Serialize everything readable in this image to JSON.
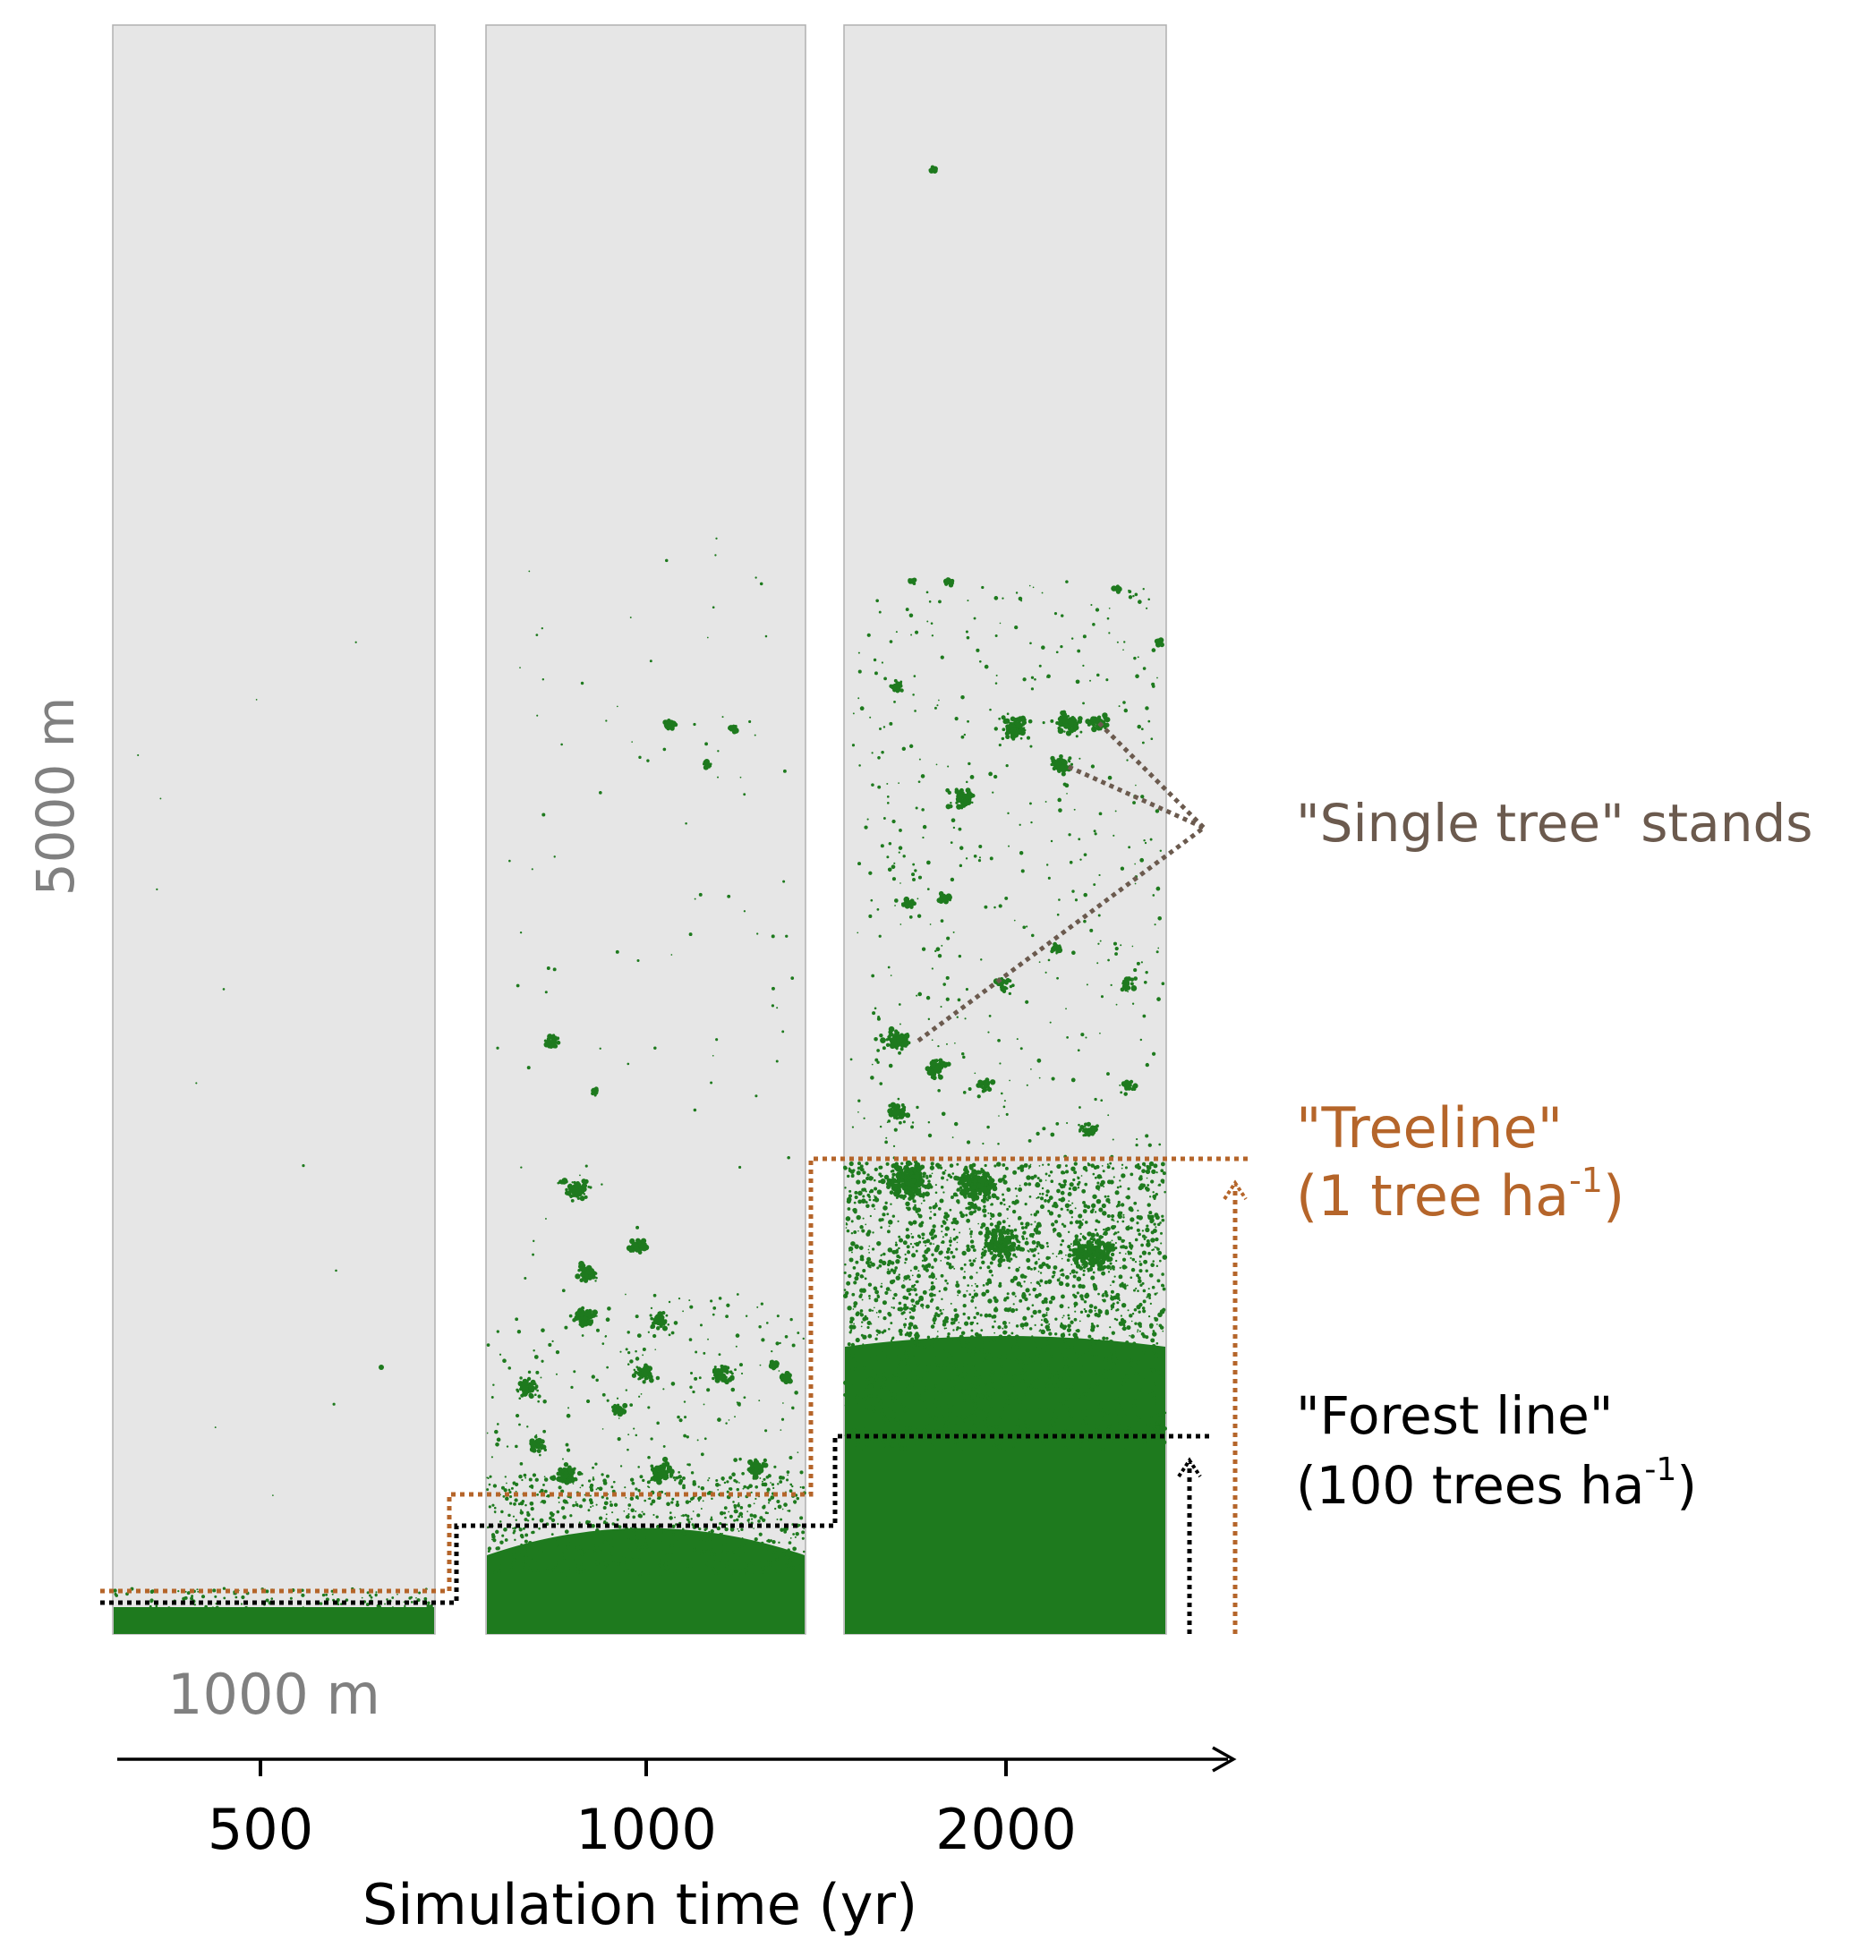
{
  "panels": [
    {
      "time": "500"
    },
    {
      "time": "1000"
    },
    {
      "time": "2000"
    }
  ],
  "scale": {
    "height_label": "5000 m",
    "width_label": "1000 m"
  },
  "axis": {
    "title": "Simulation time (yr)",
    "ticks": [
      "500",
      "1000",
      "2000"
    ]
  },
  "annotations": {
    "single_tree": "\"Single tree\" stands",
    "treeline_line1": "\"Treeline\"",
    "treeline_line2_pre": "(1 tree ha",
    "treeline_sup": "-1",
    "treeline_line2_post": ")",
    "forest_line1": "\"Forest line\"",
    "forest_line2_pre": "(100 trees ha",
    "forest_sup": "-1",
    "forest_line2_post": ")"
  },
  "colors": {
    "panel_bg": "#e6e6e6",
    "panel_border": "#b0b0b0",
    "tree_green": "#1e7a1e",
    "treeline": "#b5652a",
    "forest_line": "#000000",
    "single_tree_text": "#6b5a4e",
    "scale_text": "#808080"
  }
}
